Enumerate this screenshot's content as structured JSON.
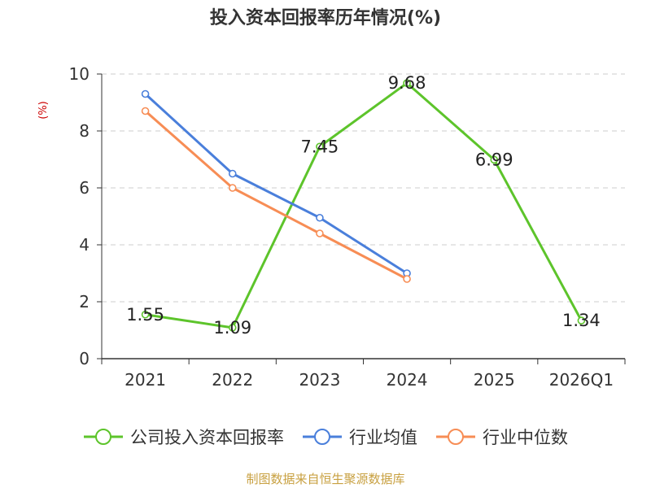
{
  "chart_data": {
    "type": "line",
    "title": "投入资本回报率历年情况(%)",
    "ylabel": "(%)",
    "categories": [
      "2021",
      "2022",
      "2023",
      "2024",
      "2025",
      "2026Q1"
    ],
    "ylim": [
      0,
      10
    ],
    "yticks": [
      0,
      2,
      4,
      6,
      8,
      10
    ],
    "grid": true,
    "legend_position": "bottom",
    "series": [
      {
        "name": "公司投入资本回报率",
        "color": "#5dc42b",
        "values": [
          1.55,
          1.09,
          7.45,
          9.68,
          6.99,
          1.34
        ],
        "labels": true
      },
      {
        "name": "行业均值",
        "color": "#4a7fdb",
        "values": [
          9.3,
          6.5,
          4.95,
          3.0,
          null,
          null
        ],
        "labels": false
      },
      {
        "name": "行业中位数",
        "color": "#f78d55",
        "values": [
          8.7,
          6.0,
          4.4,
          2.8,
          null,
          null
        ],
        "labels": false
      }
    ]
  },
  "ylabel_color": "#cc0000",
  "source": "制图数据来自恒生聚源数据库",
  "source_color": "#c8a040"
}
